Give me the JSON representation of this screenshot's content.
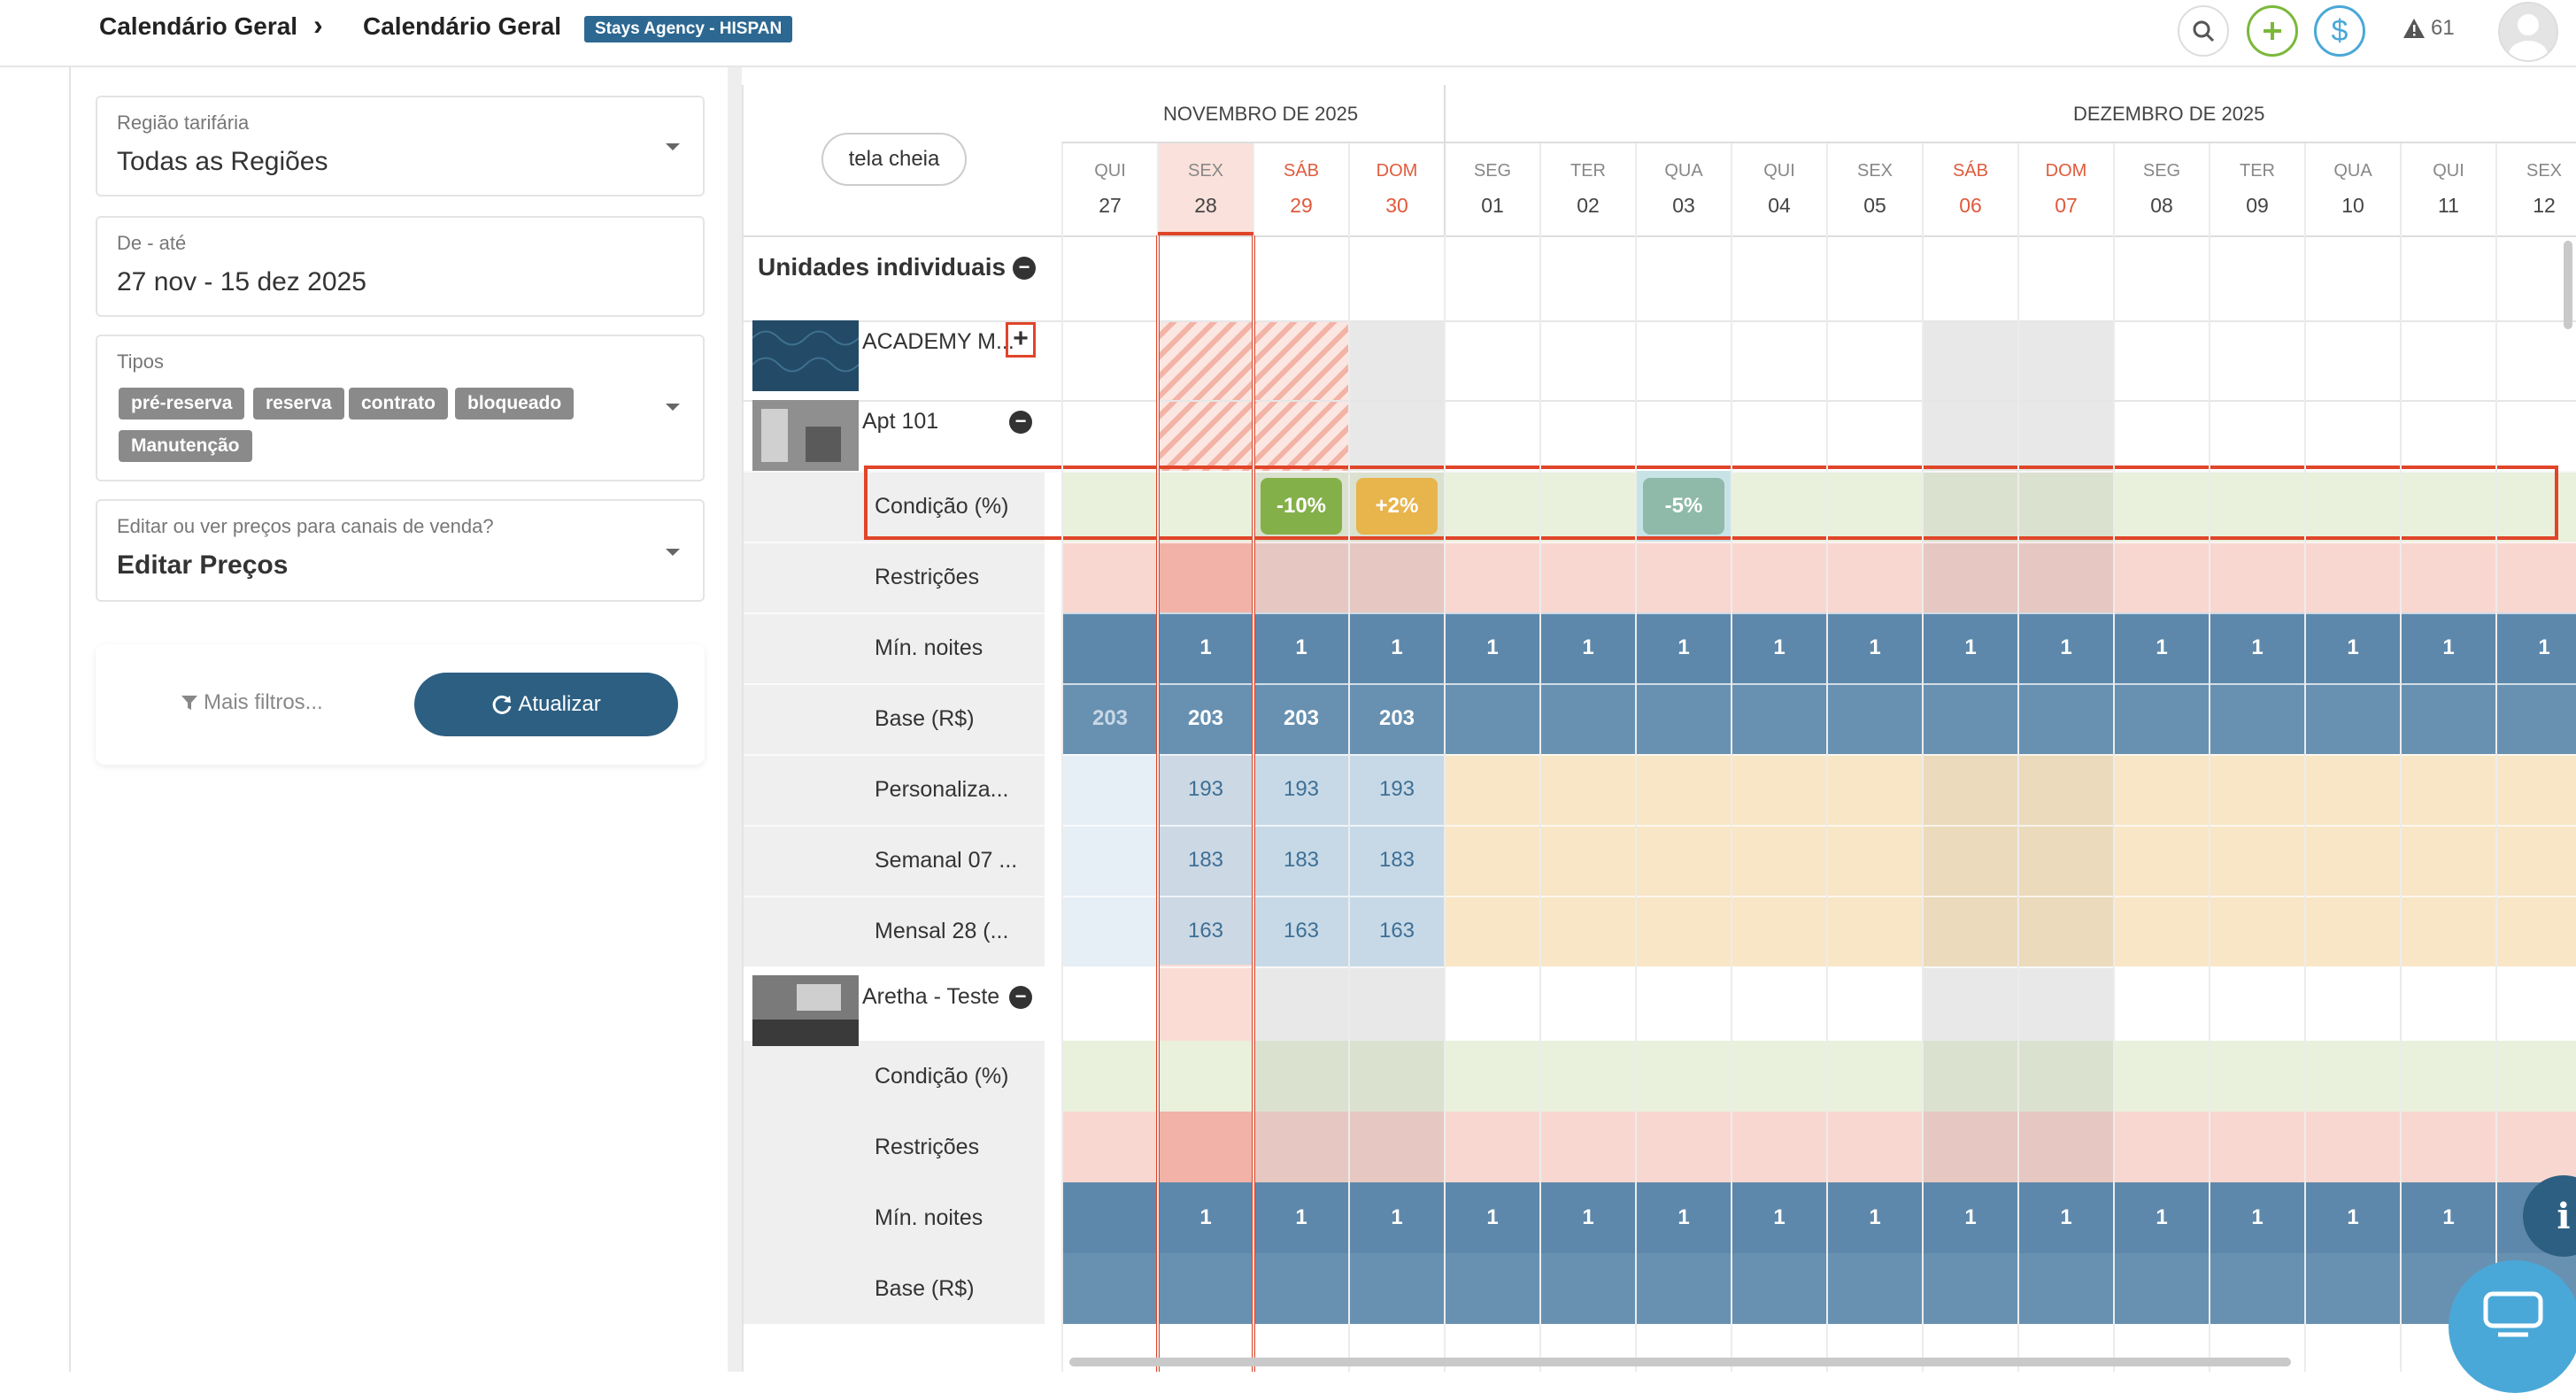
{
  "topbar": {
    "breadcrumb_1": "Calendário Geral",
    "breadcrumb_sep": "›",
    "breadcrumb_2": "Calendário Geral",
    "agency_badge": "Stays Agency - HISPAN",
    "alert_count": "61"
  },
  "filters": {
    "region": {
      "label": "Região tarifária",
      "value": "Todas as Regiões"
    },
    "dates": {
      "label": "De - até",
      "value": "27 nov - 15 dez 2025"
    },
    "types": {
      "label": "Tipos",
      "tags": [
        "pré-reserva",
        "reserva",
        "contrato",
        "bloqueado",
        "Manutenção"
      ]
    },
    "channels": {
      "label": "Editar ou ver preços para canais de venda?",
      "value": "Editar Preços"
    },
    "more_filters": "Mais filtros...",
    "update": "Atualizar"
  },
  "calendar": {
    "fullscreen": "tela cheia",
    "months": [
      "NOVEMBRO DE 2025",
      "DEZEMBRO DE 2025"
    ],
    "days": [
      {
        "name": "QUI",
        "num": "27"
      },
      {
        "name": "SEX",
        "num": "28"
      },
      {
        "name": "SÁB",
        "num": "29"
      },
      {
        "name": "DOM",
        "num": "30"
      },
      {
        "name": "SEG",
        "num": "01"
      },
      {
        "name": "TER",
        "num": "02"
      },
      {
        "name": "QUA",
        "num": "03"
      },
      {
        "name": "QUI",
        "num": "04"
      },
      {
        "name": "SEX",
        "num": "05"
      },
      {
        "name": "SÁB",
        "num": "06"
      },
      {
        "name": "DOM",
        "num": "07"
      },
      {
        "name": "SEG",
        "num": "08"
      },
      {
        "name": "TER",
        "num": "09"
      },
      {
        "name": "QUA",
        "num": "10"
      },
      {
        "name": "QUI",
        "num": "11"
      },
      {
        "name": "SEX",
        "num": "12"
      }
    ],
    "section_title": "Unidades individuais",
    "units": [
      {
        "name": "ACADEMY M..."
      },
      {
        "name": "Apt 101"
      },
      {
        "name": "Aretha - Teste"
      }
    ],
    "rows_apt": [
      "Condição (%)",
      "Restrições",
      "Mín. noites",
      "Base (R$)",
      "Personaliza...",
      "Semanal 07 ...",
      "Mensal 28 (..."
    ],
    "rows_aretha": [
      "Condição (%)",
      "Restrições",
      "Mín. noites",
      "Base (R$)"
    ],
    "conditions": [
      "-10%",
      "+2%",
      "-5%"
    ],
    "min_nights_value": "1",
    "base_value": "203",
    "personalized_value": "193",
    "weekly_value": "183",
    "monthly_value": "163"
  },
  "colors": {
    "accent_red": "#e0452a",
    "dark_blue": "#2c5f82",
    "min_nights_bg": "#5e88ab",
    "base_bg": "#6891b1"
  }
}
